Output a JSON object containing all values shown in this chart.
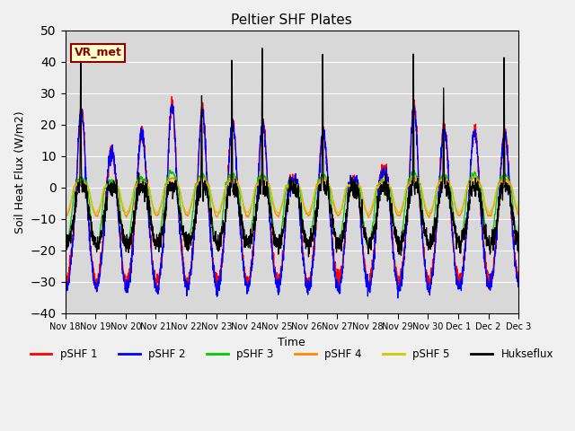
{
  "title": "Peltier SHF Plates",
  "ylabel": "Soil Heat Flux (W/m2)",
  "xlabel": "Time",
  "ylim": [
    -40,
    50
  ],
  "background_color": "#f0f0f0",
  "plot_bg_color": "#d8d8d8",
  "grid_color": "#ffffff",
  "series_colors": {
    "pSHF 1": "#ff0000",
    "pSHF 2": "#0000ff",
    "pSHF 3": "#00cc00",
    "pSHF 4": "#ff8800",
    "pSHF 5": "#cccc00",
    "Hukseflux": "#000000"
  },
  "annotation_text": "VR_met",
  "annotation_color": "#8B0000",
  "annotation_bg": "#ffffcc",
  "annotation_border": "#8B0000",
  "tick_labels": [
    "Nov 18",
    "Nov 19",
    "Nov 20",
    "Nov 21",
    "Nov 22",
    "Nov 23",
    "Nov 24",
    "Nov 25",
    "Nov 26",
    "Nov 27",
    "Nov 28",
    "Nov 29",
    "Nov 30",
    "Dec 1",
    "Dec 2",
    "Dec 3"
  ],
  "n_days": 15,
  "points_per_day": 144
}
